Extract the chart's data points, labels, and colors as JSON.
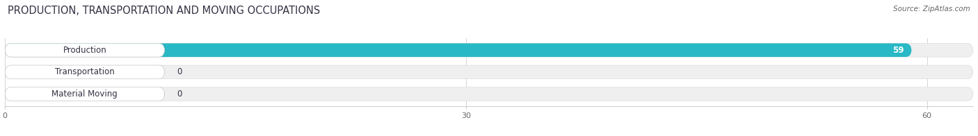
{
  "title": "PRODUCTION, TRANSPORTATION AND MOVING OCCUPATIONS",
  "source": "Source: ZipAtlas.com",
  "categories": [
    "Production",
    "Transportation",
    "Material Moving"
  ],
  "values": [
    59,
    0,
    0
  ],
  "bar_colors": [
    "#29b8c5",
    "#a9a8d8",
    "#f0a0b8"
  ],
  "bar_bg_color": "#efefef",
  "label_bg_color": "#ffffff",
  "xlim_max": 63,
  "xticks": [
    0,
    30,
    60
  ],
  "title_color": "#333344",
  "source_color": "#666666",
  "label_fontsize": 8.5,
  "title_fontsize": 10.5,
  "value_fontsize": 8.5,
  "tick_fontsize": 8,
  "bar_height": 0.62,
  "fig_bg": "#ffffff"
}
